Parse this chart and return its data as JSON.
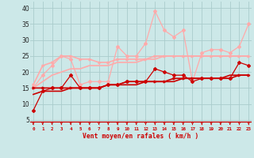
{
  "x": [
    0,
    1,
    2,
    3,
    4,
    5,
    6,
    7,
    8,
    9,
    10,
    11,
    12,
    13,
    14,
    15,
    16,
    17,
    18,
    19,
    20,
    21,
    22,
    23
  ],
  "line_dark_jagged": [
    8,
    14,
    15,
    15,
    19,
    15,
    15,
    15,
    16,
    16,
    17,
    17,
    17,
    21,
    20,
    19,
    19,
    17,
    18,
    18,
    18,
    18,
    23,
    22
  ],
  "line_dark_smooth": [
    15,
    15,
    15,
    15,
    15,
    15,
    15,
    15,
    16,
    16,
    17,
    17,
    17,
    17,
    17,
    18,
    18,
    18,
    18,
    18,
    18,
    18,
    19,
    19
  ],
  "line_dark_trend": [
    13,
    14,
    14,
    14,
    15,
    15,
    15,
    15,
    16,
    16,
    16,
    16,
    17,
    17,
    17,
    17,
    18,
    18,
    18,
    18,
    18,
    19,
    19,
    19
  ],
  "line_light_jagged": [
    15,
    19,
    22,
    25,
    24,
    16,
    17,
    17,
    17,
    28,
    25,
    25,
    29,
    39,
    33,
    31,
    33,
    17,
    26,
    27,
    27,
    26,
    28,
    35
  ],
  "line_light_smooth": [
    16,
    22,
    23,
    25,
    25,
    24,
    24,
    23,
    23,
    24,
    24,
    24,
    24,
    25,
    25,
    25,
    25,
    25,
    25,
    25,
    25,
    25,
    25,
    25
  ],
  "line_light_trend": [
    15,
    17,
    19,
    20,
    21,
    21,
    22,
    22,
    22,
    23,
    23,
    23,
    24,
    24,
    25,
    25,
    25,
    25,
    25,
    25,
    25,
    25,
    25,
    25
  ],
  "bg_color": "#cce8e8",
  "grid_color": "#aacccc",
  "dark_color": "#cc0000",
  "light_color": "#ffaaaa",
  "xlabel": "Vent moyen/en rafales ( km/h )",
  "yticks": [
    5,
    10,
    15,
    20,
    25,
    30,
    35,
    40
  ],
  "ylim": [
    3,
    42
  ],
  "xlim": [
    -0.3,
    23.3
  ],
  "marker_dark": "D",
  "marker_light": "D"
}
